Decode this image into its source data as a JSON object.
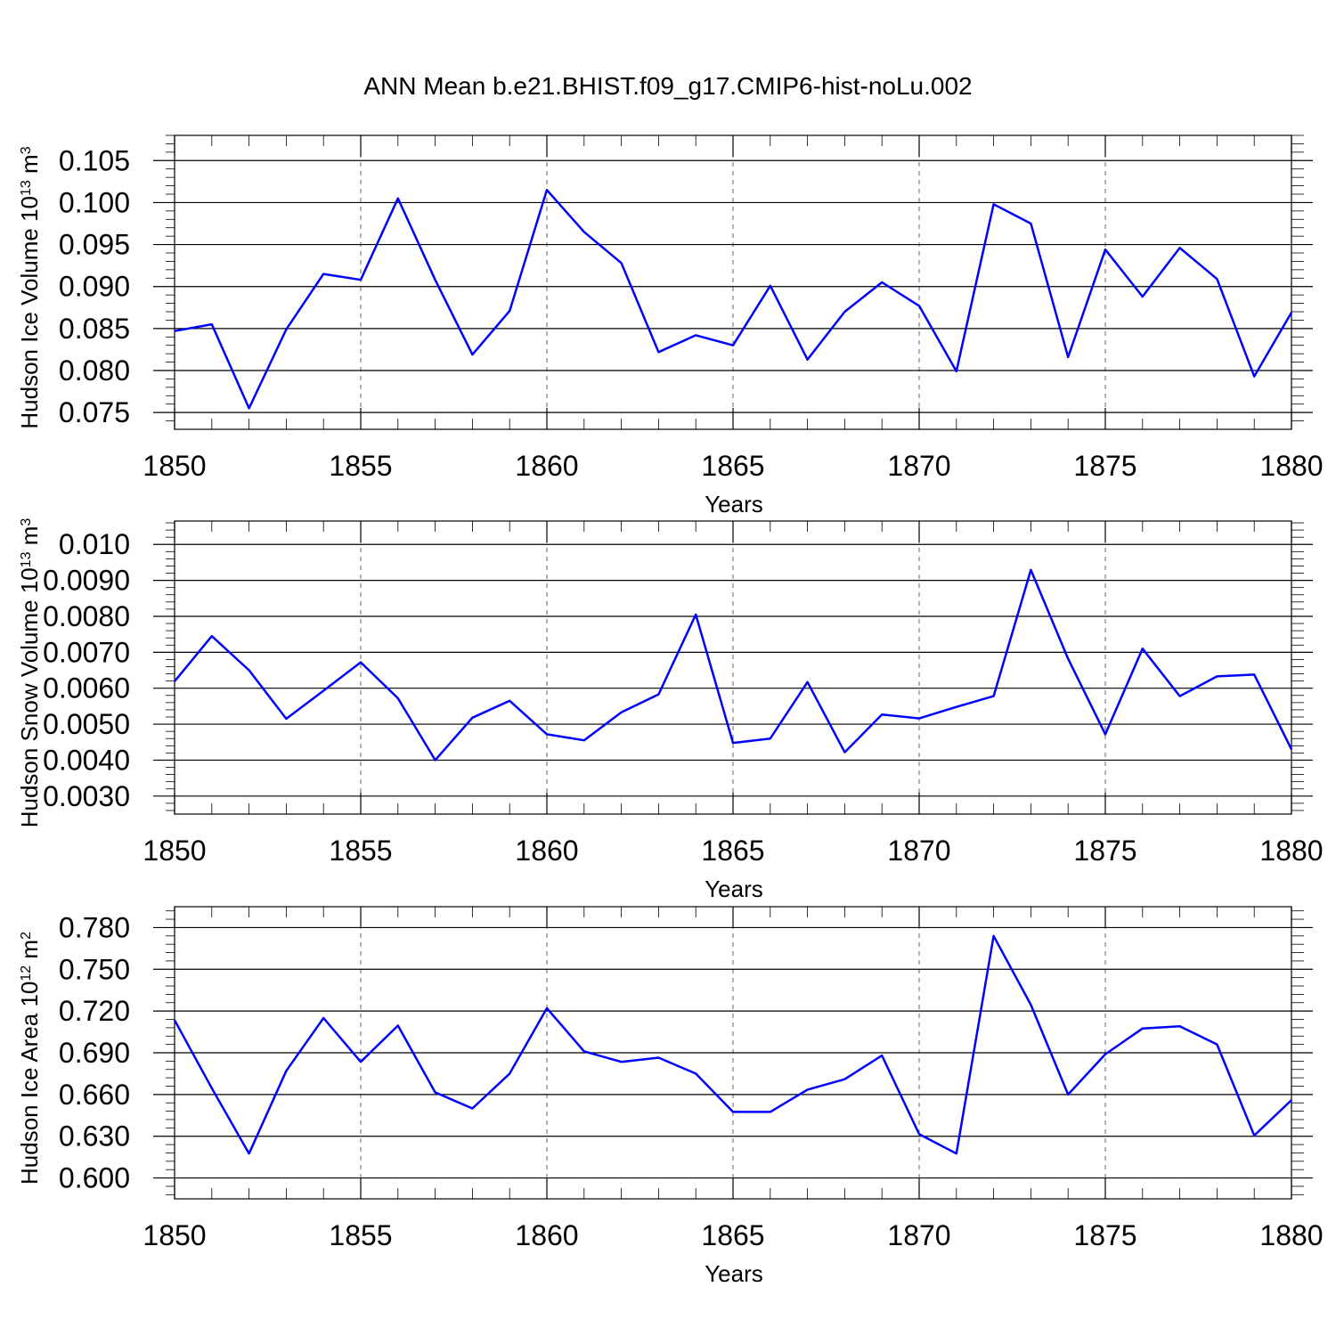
{
  "title": "ANN Mean b.e21.BHIST.f09_g17.CMIP6-hist-noLu.002",
  "chart_data": [
    {
      "type": "line",
      "title": "",
      "xlabel": "Years",
      "ylabel": "Hudson Ice Volume 10",
      "ylabel_exponent": "13",
      "ylabel_unit": "m",
      "ylabel_unit_exponent": "3",
      "xlim": [
        1850,
        1880
      ],
      "ylim": [
        0.073,
        0.108
      ],
      "x_ticks": [
        "1850",
        "1855",
        "1860",
        "1865",
        "1870",
        "1875",
        "1880"
      ],
      "y_ticks": [
        "0.075",
        "0.080",
        "0.085",
        "0.090",
        "0.095",
        "0.100",
        "0.105"
      ],
      "grid": "dashed vertical at major x ticks",
      "color": "#0000ff",
      "x": [
        1850,
        1851,
        1852,
        1853,
        1854,
        1855,
        1856,
        1857,
        1858,
        1859,
        1860,
        1861,
        1862,
        1863,
        1864,
        1865,
        1866,
        1867,
        1868,
        1869,
        1870,
        1871,
        1872,
        1873,
        1874,
        1875,
        1876,
        1877,
        1878,
        1879,
        1880
      ],
      "values": [
        0.0847,
        0.0855,
        0.0755,
        0.0849,
        0.0915,
        0.0908,
        0.1005,
        0.0908,
        0.0819,
        0.0871,
        0.1015,
        0.0965,
        0.0928,
        0.0822,
        0.0842,
        0.083,
        0.0901,
        0.0813,
        0.087,
        0.0905,
        0.0877,
        0.0799,
        0.0998,
        0.0975,
        0.0816,
        0.0944,
        0.0888,
        0.0946,
        0.0909,
        0.0793,
        0.0869
      ]
    },
    {
      "type": "line",
      "title": "",
      "xlabel": "Years",
      "ylabel": "Hudson Snow Volume 10",
      "ylabel_exponent": "13",
      "ylabel_unit": "m",
      "ylabel_unit_exponent": "3",
      "xlim": [
        1850,
        1880
      ],
      "ylim": [
        0.0025,
        0.01065
      ],
      "x_ticks": [
        "1850",
        "1855",
        "1860",
        "1865",
        "1870",
        "1875",
        "1880"
      ],
      "y_ticks": [
        "0.0030",
        "0.0040",
        "0.0050",
        "0.0060",
        "0.0070",
        "0.0080",
        "0.0090",
        "0.010"
      ],
      "grid": "dashed vertical at major x ticks",
      "color": "#0000ff",
      "x": [
        1850,
        1851,
        1852,
        1853,
        1854,
        1855,
        1856,
        1857,
        1858,
        1859,
        1860,
        1861,
        1862,
        1863,
        1864,
        1865,
        1866,
        1867,
        1868,
        1869,
        1870,
        1871,
        1872,
        1873,
        1874,
        1875,
        1876,
        1877,
        1878,
        1879,
        1880
      ],
      "values": [
        0.00619,
        0.00745,
        0.0065,
        0.00515,
        0.00593,
        0.00672,
        0.00572,
        0.004,
        0.00518,
        0.00565,
        0.00472,
        0.00455,
        0.00533,
        0.00583,
        0.00805,
        0.00448,
        0.0046,
        0.00617,
        0.00422,
        0.00527,
        0.00516,
        0.00548,
        0.00578,
        0.00929,
        0.00682,
        0.00472,
        0.0071,
        0.00578,
        0.00633,
        0.00638,
        0.0043
      ]
    },
    {
      "type": "line",
      "title": "",
      "xlabel": "Years",
      "ylabel": "Hudson Ice Area 10",
      "ylabel_exponent": "12",
      "ylabel_unit": "m",
      "ylabel_unit_exponent": "2",
      "xlim": [
        1850,
        1880
      ],
      "ylim": [
        0.585,
        0.795
      ],
      "x_ticks": [
        "1850",
        "1855",
        "1860",
        "1865",
        "1870",
        "1875",
        "1880"
      ],
      "y_ticks": [
        "0.600",
        "0.630",
        "0.660",
        "0.690",
        "0.720",
        "0.750",
        "0.780"
      ],
      "grid": "dashed vertical at major x ticks",
      "color": "#0000ff",
      "x": [
        1850,
        1851,
        1852,
        1853,
        1854,
        1855,
        1856,
        1857,
        1858,
        1859,
        1860,
        1861,
        1862,
        1863,
        1864,
        1865,
        1866,
        1867,
        1868,
        1869,
        1870,
        1871,
        1872,
        1873,
        1874,
        1875,
        1876,
        1877,
        1878,
        1879,
        1880
      ],
      "values": [
        0.7135,
        0.6645,
        0.6175,
        0.677,
        0.715,
        0.6835,
        0.7095,
        0.6615,
        0.65,
        0.675,
        0.722,
        0.691,
        0.6835,
        0.6865,
        0.675,
        0.6475,
        0.6475,
        0.6635,
        0.671,
        0.688,
        0.6315,
        0.6175,
        0.774,
        0.7245,
        0.66,
        0.689,
        0.7075,
        0.709,
        0.696,
        0.6305,
        0.656
      ]
    }
  ]
}
